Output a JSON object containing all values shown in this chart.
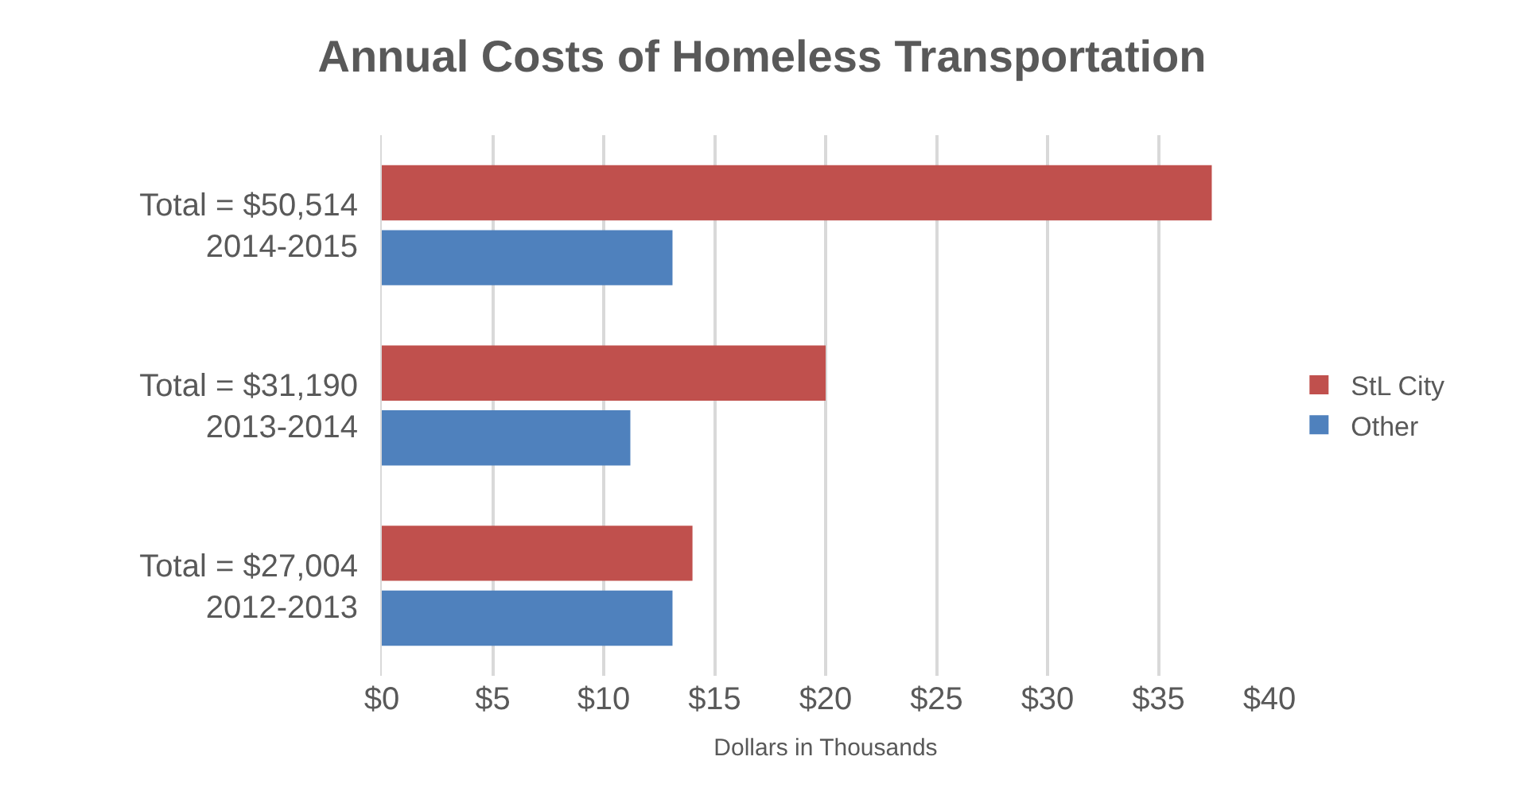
{
  "chart_data": {
    "type": "bar",
    "orientation": "horizontal",
    "title": "Annual Costs of Homeless Transportation",
    "xlabel": "Dollars in Thousands",
    "categories": [
      "Total = $50,514\n2014-2015",
      "Total = $31,190\n2013-2014",
      "Total = $27,004\n2012-2013"
    ],
    "series": [
      {
        "name": "StL City",
        "color": "#c0504d",
        "values": [
          37.4,
          20.0,
          14.0
        ]
      },
      {
        "name": "Other",
        "color": "#4f81bd",
        "values": [
          13.1,
          11.2,
          13.1
        ]
      }
    ],
    "xlim": [
      0,
      40
    ],
    "xticks": [
      {
        "value": 0,
        "label": "$0"
      },
      {
        "value": 5,
        "label": "$5"
      },
      {
        "value": 10,
        "label": "$10"
      },
      {
        "value": 15,
        "label": "$15"
      },
      {
        "value": 20,
        "label": "$20"
      },
      {
        "value": 25,
        "label": "$25"
      },
      {
        "value": 30,
        "label": "$30"
      },
      {
        "value": 35,
        "label": "$35"
      },
      {
        "value": 40,
        "label": "$40"
      }
    ],
    "grid": "x",
    "legend": "right"
  }
}
